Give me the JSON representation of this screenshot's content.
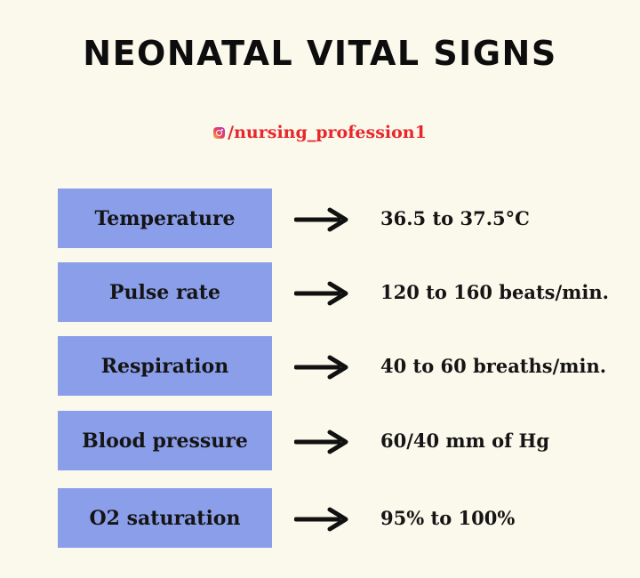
{
  "title": "NEONATAL VITAL SIGNS",
  "handle": {
    "icon": "instagram-icon",
    "text": "/nursing_profession1"
  },
  "rows": [
    {
      "label": "Temperature",
      "value": "36.5 to 37.5°C"
    },
    {
      "label": "Pulse rate",
      "value": "120 to 160 beats/min."
    },
    {
      "label": "Respiration",
      "value": "40 to 60 breaths/min."
    },
    {
      "label": "Blood pressure",
      "value": "60/40 mm of Hg"
    },
    {
      "label": "O2 saturation",
      "value": "95% to 100%"
    }
  ],
  "colors": {
    "background": "#fbf8ec",
    "label_box": "#8b9eea",
    "handle": "#e8262b"
  }
}
